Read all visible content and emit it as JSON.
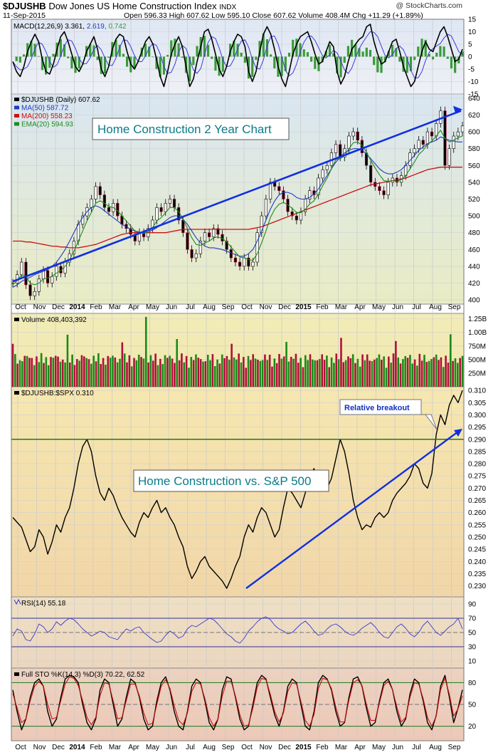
{
  "header": {
    "symbol": "$DJUSHB",
    "name": "Dow Jones US Home Construction Index",
    "exchange": "INDX",
    "date": "11-Sep-2015",
    "brand": "@ StockCharts.com",
    "quote": "Open 596.33  High 607.62  Low 595.10  Close 607.62  Volume 408.4M  Chg +11.29 (+1.89%)"
  },
  "months": [
    "Oct",
    "Nov",
    "Dec",
    "2014",
    "Feb",
    "Mar",
    "Apr",
    "May",
    "Jun",
    "Jul",
    "Aug",
    "Sep",
    "Oct",
    "Nov",
    "Dec",
    "2015",
    "Feb",
    "Mar",
    "Apr",
    "May",
    "Jun",
    "Jul",
    "Aug",
    "Sep"
  ],
  "colors": {
    "up": "#1a8a1a",
    "down": "#b0103a",
    "ma50": "#1e3cbf",
    "ma200": "#cc1010",
    "ema20": "#1e8a1e",
    "trend": "#1030e0",
    "macd_hist": "#3a9a3a"
  },
  "chart_data": [
    {
      "type": "line",
      "title": "MACD(12,26,9)",
      "legend": [
        "3.361",
        "2.619",
        "0.742"
      ],
      "ylim": [
        -15,
        15
      ],
      "yticks": [
        "15",
        "10",
        "5",
        "0",
        "-5",
        "-10",
        "-15"
      ],
      "series": [
        {
          "name": "MACD",
          "values": [
            -2,
            -6,
            -8,
            -4,
            2,
            6,
            9,
            6,
            -1,
            -6,
            -7,
            -3,
            3,
            8,
            10,
            6,
            1,
            -4,
            -6,
            -3,
            2,
            5,
            8,
            3,
            -5,
            -8,
            -4,
            3,
            7,
            9,
            8,
            2,
            -3,
            -5,
            -2,
            2,
            6,
            8,
            5,
            -1,
            -8,
            -12,
            -6,
            1,
            5,
            8,
            4,
            -4,
            -12,
            -9,
            -2,
            4,
            10,
            11,
            7,
            1,
            -5,
            -8,
            -4,
            2,
            6,
            9,
            8,
            4,
            -6,
            -10,
            -6,
            2,
            9,
            12,
            9,
            3,
            -4,
            -9,
            -12,
            -6,
            1,
            5,
            8,
            9,
            10,
            6,
            1,
            -3,
            -2,
            2,
            6,
            4,
            -6,
            -11,
            -8,
            -2,
            3,
            5,
            7,
            8,
            12,
            13,
            6,
            1,
            -3,
            -2,
            2,
            6,
            7,
            2,
            -4,
            -8,
            -12,
            -10,
            -4,
            2,
            6,
            3,
            2,
            6,
            10,
            12,
            8,
            3,
            -2,
            -1,
            3
          ]
        }
      ]
    },
    {
      "type": "line",
      "title": "$DJUSHB (Daily) 607.62",
      "legend": [
        "MA(50) 587.72",
        "MA(200) 558.23",
        "EMA(20) 594.93"
      ],
      "annotation": "Home Construction 2 Year Chart",
      "ylim": [
        395,
        645
      ],
      "yticks": [
        "640",
        "620",
        "600",
        "580",
        "560",
        "540",
        "520",
        "500",
        "480",
        "460",
        "440",
        "420",
        "400"
      ],
      "series": [
        {
          "name": "$DJUSHB",
          "values": [
            420,
            430,
            445,
            418,
            405,
            410,
            425,
            435,
            420,
            428,
            440,
            432,
            445,
            455,
            470,
            490,
            500,
            510,
            520,
            535,
            525,
            510,
            505,
            515,
            500,
            490,
            485,
            478,
            470,
            480,
            475,
            485,
            495,
            510,
            505,
            515,
            520,
            510,
            495,
            480,
            460,
            450,
            455,
            470,
            480,
            475,
            485,
            478,
            470,
            460,
            450,
            445,
            440,
            450,
            440,
            445,
            480,
            500,
            520,
            540,
            535,
            530,
            520,
            505,
            500,
            495,
            505,
            520,
            530,
            525,
            545,
            555,
            560,
            575,
            585,
            570,
            580,
            595,
            600,
            590,
            575,
            560,
            540,
            535,
            530,
            525,
            540,
            545,
            540,
            548,
            560,
            575,
            580,
            590,
            585,
            600,
            595,
            610,
            625,
            560,
            580,
            595,
            600,
            607
          ]
        },
        {
          "name": "MA(50)",
          "values": [
            415,
            418,
            422,
            425,
            427,
            430,
            432,
            434,
            436,
            440,
            445,
            452,
            460,
            470,
            480,
            490,
            498,
            505,
            510,
            512,
            510,
            506,
            502,
            498,
            494,
            490,
            487,
            484,
            482,
            480,
            480,
            481,
            483,
            486,
            490,
            494,
            498,
            500,
            500,
            496,
            490,
            482,
            474,
            468,
            464,
            462,
            462,
            461,
            460,
            458,
            456,
            454,
            452,
            452,
            455,
            460,
            470,
            482,
            495,
            508,
            518,
            525,
            528,
            528,
            526,
            522,
            520,
            520,
            522,
            526,
            532,
            540,
            548,
            556,
            564,
            570,
            575,
            578,
            580,
            580,
            578,
            574,
            568,
            562,
            556,
            552,
            550,
            550,
            552,
            555,
            560,
            566,
            572,
            578,
            582,
            586,
            588,
            590,
            594,
            592,
            590,
            589,
            588,
            588
          ]
        },
        {
          "name": "MA(200)",
          "values": [
            470,
            470,
            470,
            469,
            469,
            468,
            467,
            466,
            465,
            464,
            464,
            463,
            463,
            462,
            462,
            462,
            463,
            464,
            465,
            466,
            468,
            470,
            472,
            474,
            476,
            478,
            479,
            480,
            480,
            480,
            480,
            480,
            480,
            480,
            480,
            480,
            481,
            482,
            483,
            484,
            484,
            484,
            484,
            484,
            484,
            484,
            484,
            484,
            484,
            484,
            484,
            484,
            484,
            484,
            484,
            485,
            486,
            487,
            489,
            491,
            493,
            495,
            497,
            499,
            501,
            503,
            505,
            507,
            509,
            511,
            513,
            515,
            517,
            519,
            521,
            523,
            525,
            527,
            529,
            531,
            533,
            535,
            537,
            538,
            539,
            540,
            541,
            542,
            543,
            544,
            545,
            547,
            549,
            551,
            553,
            555,
            556,
            557,
            558,
            558,
            558,
            558,
            558,
            558
          ]
        },
        {
          "name": "EMA(20)",
          "values": [
            418,
            423,
            430,
            428,
            420,
            418,
            420,
            425,
            426,
            428,
            432,
            435,
            440,
            448,
            458,
            470,
            482,
            494,
            504,
            515,
            518,
            515,
            511,
            510,
            506,
            500,
            494,
            488,
            482,
            481,
            479,
            481,
            486,
            494,
            498,
            504,
            510,
            510,
            505,
            496,
            485,
            474,
            466,
            465,
            468,
            470,
            474,
            475,
            473,
            469,
            463,
            457,
            451,
            450,
            448,
            447,
            455,
            468,
            482,
            498,
            508,
            514,
            516,
            513,
            509,
            504,
            504,
            508,
            514,
            518,
            526,
            536,
            545,
            556,
            567,
            568,
            572,
            580,
            587,
            588,
            584,
            576,
            566,
            557,
            549,
            542,
            541,
            542,
            541,
            543,
            548,
            556,
            564,
            573,
            578,
            585,
            589,
            595,
            602,
            592,
            588,
            590,
            593,
            595
          ]
        },
        {
          "name": "Trendline",
          "values": [
            422,
            625
          ]
        }
      ]
    },
    {
      "type": "bar",
      "title": "Volume 408,403,392",
      "ylim": [
        0,
        1.35
      ],
      "yticks": [
        "1.25B",
        "1.00B",
        "750M",
        "500M",
        "250M"
      ]
    },
    {
      "type": "line",
      "title": "$DJUSHB:$SPX 0.310",
      "annotation": "Home Construction vs. S&P 500",
      "callout": "Relative breakout",
      "ylim": [
        0.2255,
        0.3115
      ],
      "yticks": [
        "0.310",
        "0.305",
        "0.300",
        "0.295",
        "0.290",
        "0.285",
        "0.280",
        "0.275",
        "0.270",
        "0.265",
        "0.260",
        "0.255",
        "0.250",
        "0.245",
        "0.240",
        "0.235",
        "0.230"
      ],
      "series": [
        {
          "name": "$DJUSHB:$SPX",
          "values": [
            0.258,
            0.256,
            0.254,
            0.249,
            0.244,
            0.246,
            0.253,
            0.25,
            0.243,
            0.248,
            0.255,
            0.252,
            0.258,
            0.262,
            0.27,
            0.28,
            0.287,
            0.29,
            0.285,
            0.275,
            0.268,
            0.265,
            0.27,
            0.267,
            0.262,
            0.258,
            0.255,
            0.252,
            0.25,
            0.256,
            0.26,
            0.258,
            0.262,
            0.265,
            0.26,
            0.262,
            0.258,
            0.255,
            0.25,
            0.246,
            0.238,
            0.233,
            0.236,
            0.24,
            0.242,
            0.238,
            0.236,
            0.234,
            0.232,
            0.229,
            0.233,
            0.238,
            0.242,
            0.25,
            0.255,
            0.252,
            0.258,
            0.262,
            0.26,
            0.255,
            0.25,
            0.253,
            0.262,
            0.27,
            0.268,
            0.265,
            0.262,
            0.268,
            0.275,
            0.278,
            0.272,
            0.276,
            0.27,
            0.274,
            0.282,
            0.29,
            0.285,
            0.276,
            0.265,
            0.258,
            0.253,
            0.255,
            0.254,
            0.258,
            0.26,
            0.258,
            0.26,
            0.265,
            0.268,
            0.27,
            0.272,
            0.275,
            0.28,
            0.278,
            0.272,
            0.27,
            0.276,
            0.292,
            0.3,
            0.296,
            0.304,
            0.308,
            0.305,
            0.31
          ]
        },
        {
          "name": "Resistance",
          "values": [
            0.29,
            0.29
          ]
        },
        {
          "name": "Trendline",
          "values": [
            0.229,
            0.294
          ]
        }
      ]
    },
    {
      "type": "line",
      "title": "RSI(14) 55.18",
      "ylim": [
        0,
        100
      ],
      "yticks": [
        "90",
        "70",
        "50",
        "30",
        "10"
      ],
      "series": [
        {
          "name": "RSI(14)",
          "values": [
            45,
            55,
            52,
            40,
            38,
            48,
            62,
            58,
            50,
            55,
            65,
            60,
            66,
            70,
            68,
            62,
            55,
            50,
            45,
            48,
            52,
            50,
            44,
            42,
            40,
            48,
            55,
            52,
            56,
            58,
            50,
            45,
            40,
            36,
            38,
            46,
            52,
            48,
            42,
            45,
            55,
            60,
            58,
            62,
            66,
            70,
            68,
            62,
            55,
            48,
            44,
            38,
            35,
            42,
            52,
            58,
            65,
            70,
            72,
            68,
            60,
            55,
            52,
            48,
            50,
            56,
            62,
            66,
            60,
            52,
            46,
            48,
            55,
            60,
            62,
            58,
            52,
            48,
            46,
            50,
            56,
            60,
            64,
            58,
            50,
            44,
            42,
            50,
            58,
            62,
            56,
            48,
            44,
            50,
            60,
            66,
            58,
            50,
            46,
            52,
            58,
            62,
            70,
            55
          ]
        }
      ]
    },
    {
      "type": "line",
      "title": "Full STO %K(14,3) %D(3) 70.22, 62.52",
      "ylim": [
        0,
        100
      ],
      "yticks": [
        "80",
        "50",
        "20"
      ],
      "series": [
        {
          "name": "%K",
          "values": [
            70,
            40,
            15,
            30,
            60,
            80,
            85,
            75,
            40,
            20,
            30,
            60,
            85,
            90,
            88,
            80,
            50,
            25,
            15,
            30,
            70,
            85,
            80,
            50,
            20,
            30,
            60,
            85,
            80,
            60,
            30,
            15,
            20,
            55,
            80,
            88,
            70,
            40,
            20,
            15,
            40,
            75,
            85,
            80,
            55,
            25,
            15,
            30,
            70,
            88,
            85,
            60,
            30,
            15,
            20,
            50,
            80,
            90,
            85,
            60,
            35,
            20,
            40,
            75,
            85,
            80,
            50,
            20,
            15,
            40,
            80,
            90,
            85,
            70,
            40,
            20,
            25,
            60,
            85,
            88,
            75,
            45,
            20,
            25,
            55,
            80,
            85,
            70,
            40,
            20,
            30,
            65,
            85,
            80,
            55,
            25,
            15,
            35,
            75,
            90,
            60,
            25,
            45,
            70
          ]
        },
        {
          "name": "%D",
          "values": [
            65,
            45,
            25,
            30,
            55,
            75,
            82,
            75,
            50,
            30,
            32,
            55,
            78,
            88,
            86,
            76,
            55,
            32,
            22,
            32,
            62,
            80,
            78,
            55,
            30,
            32,
            55,
            78,
            78,
            62,
            38,
            22,
            24,
            50,
            75,
            84,
            72,
            48,
            28,
            22,
            38,
            68,
            80,
            78,
            58,
            32,
            20,
            30,
            62,
            82,
            82,
            62,
            36,
            20,
            22,
            45,
            74,
            86,
            84,
            64,
            40,
            26,
            38,
            68,
            80,
            78,
            54,
            28,
            20,
            36,
            72,
            86,
            84,
            72,
            46,
            26,
            26,
            56,
            80,
            84,
            76,
            50,
            28,
            28,
            52,
            76,
            82,
            70,
            46,
            26,
            32,
            60,
            80,
            78,
            58,
            32,
            20,
            34,
            70,
            86,
            64,
            34,
            44,
            62
          ]
        }
      ]
    }
  ]
}
